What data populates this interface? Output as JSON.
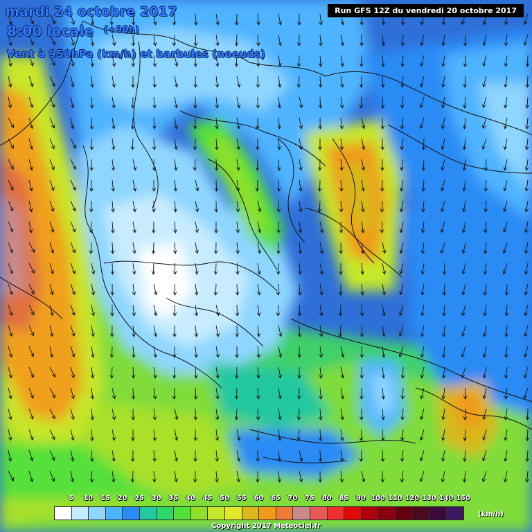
{
  "header": {
    "date": "mardi 24 octobre 2017",
    "time": "8:00 locale",
    "lead": "(+90h)",
    "field": "Vent à 950hPa (km/h) et barbules (noeuds)"
  },
  "run_label": "Run GFS 12Z du vendredi 20 octobre 2017",
  "legend": {
    "unit": "(km/h)",
    "labels": [
      "5",
      "10",
      "15",
      "20",
      "25",
      "30",
      "35",
      "40",
      "45",
      "50",
      "55",
      "60",
      "65",
      "70",
      "75",
      "80",
      "85",
      "90",
      "100",
      "110",
      "120",
      "130",
      "140",
      "150"
    ],
    "colors": [
      "#ffffff",
      "#c8ecff",
      "#8fd6ff",
      "#4fb4ff",
      "#2a8bf5",
      "#24c8a0",
      "#2fd66a",
      "#54e03a",
      "#8ee02a",
      "#c6e82a",
      "#e2e82a",
      "#d8b81c",
      "#f09a1a",
      "#f07a3a",
      "#c98a8a",
      "#e85a5a",
      "#f03030",
      "#e00a0a",
      "#b00010",
      "#880010",
      "#660010",
      "#4a0a20",
      "#3a0a3a",
      "#3c1860"
    ]
  },
  "copyright": "Copyright 2017 Meteociel.fr",
  "colors": {
    "background": "#2f6fd8",
    "title": "#2e7bff",
    "borders": "#111111"
  }
}
